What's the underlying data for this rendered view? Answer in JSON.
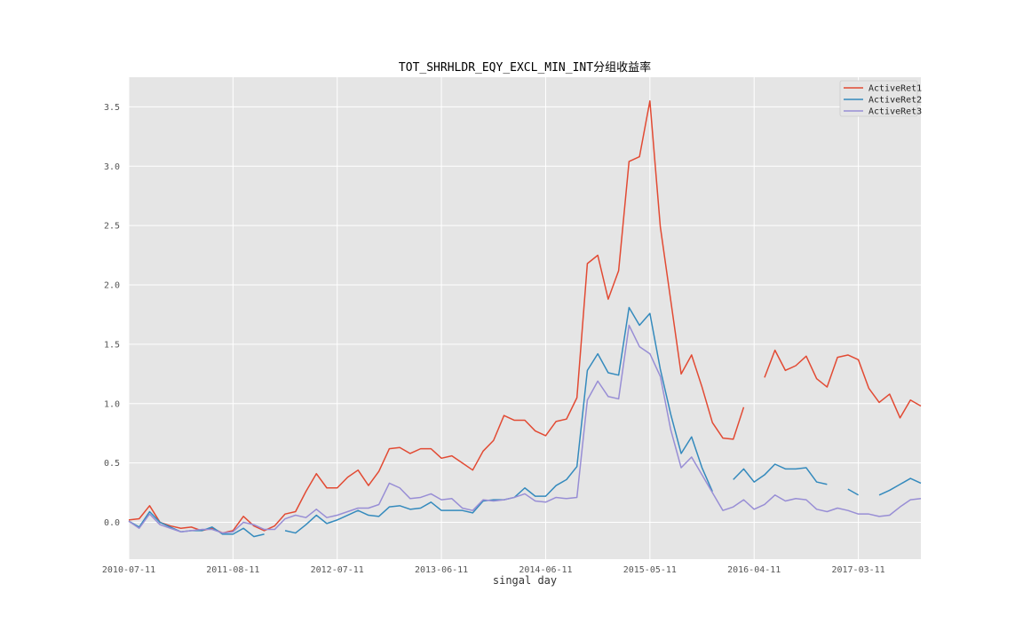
{
  "chart_data": {
    "type": "line",
    "title": "TOT_SHRHLDR_EQY_EXCL_MIN_INT分组收益率",
    "xlabel": "singal day",
    "ylabel": "",
    "x_tick_labels": [
      "2010-07-11",
      "2011-08-11",
      "2012-07-11",
      "2013-06-11",
      "2014-06-11",
      "2015-05-11",
      "2016-04-11",
      "2017-03-11"
    ],
    "x_tick_index": [
      0,
      10,
      20,
      30,
      40,
      50,
      60,
      70
    ],
    "x_count": 77,
    "y_ticks": [
      0.0,
      0.5,
      1.0,
      1.5,
      2.0,
      2.5,
      3.0,
      3.5
    ],
    "y_tick_labels": [
      "0.0",
      "0.5",
      "1.0",
      "1.5",
      "2.0",
      "2.5",
      "3.0",
      "3.5"
    ],
    "ylim": [
      -0.31,
      3.75
    ],
    "grid": true,
    "legend_position": "top-right",
    "series": [
      {
        "name": "ActiveRet1",
        "color": "#E24A33",
        "values": [
          0.02,
          0.03,
          0.14,
          0.0,
          -0.03,
          -0.05,
          -0.04,
          -0.07,
          -0.05,
          -0.09,
          -0.07,
          0.05,
          -0.03,
          -0.07,
          -0.03,
          0.07,
          0.09,
          0.26,
          0.41,
          0.29,
          0.29,
          0.38,
          0.44,
          0.31,
          0.43,
          0.62,
          0.63,
          0.58,
          0.62,
          0.62,
          0.54,
          0.56,
          0.5,
          0.44,
          0.6,
          0.69,
          0.9,
          0.86,
          0.86,
          0.77,
          0.73,
          0.85,
          0.87,
          1.05,
          2.18,
          2.25,
          1.88,
          2.12,
          3.04,
          3.08,
          3.55,
          2.49,
          1.87,
          1.25,
          1.41,
          1.14,
          0.84,
          0.71,
          0.7,
          0.97,
          null,
          1.22,
          1.45,
          1.28,
          1.32,
          1.4,
          1.21,
          1.14,
          1.39,
          1.41,
          1.37,
          1.13,
          1.01,
          1.08,
          0.88,
          1.03,
          0.98
        ]
      },
      {
        "name": "ActiveRet2",
        "color": "#348ABD",
        "values": [
          0.01,
          -0.04,
          0.09,
          0.0,
          -0.04,
          -0.08,
          -0.07,
          -0.07,
          -0.04,
          -0.1,
          -0.1,
          -0.05,
          -0.12,
          -0.1,
          null,
          -0.07,
          -0.09,
          -0.02,
          0.06,
          -0.01,
          0.02,
          0.06,
          0.1,
          0.06,
          0.05,
          0.13,
          0.14,
          0.11,
          0.12,
          0.17,
          0.1,
          0.1,
          0.1,
          0.08,
          0.18,
          0.19,
          0.19,
          0.21,
          0.29,
          0.22,
          0.22,
          0.31,
          0.36,
          0.47,
          1.28,
          1.42,
          1.26,
          1.24,
          1.81,
          1.66,
          1.76,
          1.29,
          0.91,
          0.58,
          0.72,
          0.46,
          0.26,
          null,
          0.36,
          0.45,
          0.34,
          0.4,
          0.49,
          0.45,
          0.45,
          0.46,
          0.34,
          0.32,
          null,
          0.28,
          0.23,
          null,
          0.23,
          0.27,
          0.32,
          0.37,
          0.33
        ]
      },
      {
        "name": "ActiveRet3",
        "color": "#988ED5",
        "values": [
          0.01,
          -0.05,
          0.07,
          -0.02,
          -0.05,
          -0.08,
          -0.07,
          -0.06,
          -0.06,
          -0.09,
          -0.08,
          0.0,
          -0.02,
          -0.06,
          -0.06,
          0.03,
          0.06,
          0.04,
          0.11,
          0.04,
          0.06,
          0.09,
          0.12,
          0.12,
          0.15,
          0.33,
          0.29,
          0.2,
          0.21,
          0.24,
          0.19,
          0.2,
          0.12,
          0.1,
          0.19,
          0.18,
          0.19,
          0.21,
          0.24,
          0.18,
          0.17,
          0.21,
          0.2,
          0.21,
          1.03,
          1.19,
          1.06,
          1.04,
          1.66,
          1.48,
          1.42,
          1.23,
          0.78,
          0.46,
          0.55,
          0.4,
          0.25,
          0.1,
          0.13,
          0.19,
          0.11,
          0.15,
          0.23,
          0.18,
          0.2,
          0.19,
          0.11,
          0.09,
          0.12,
          0.1,
          0.07,
          0.07,
          0.05,
          0.06,
          0.13,
          0.19,
          0.2
        ]
      }
    ]
  }
}
